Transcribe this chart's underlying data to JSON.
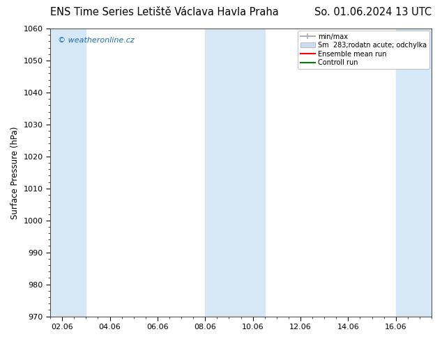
{
  "title_left": "ENS Time Series Letiště Václava Havla Praha",
  "title_right": "So. 01.06.2024 13 UTC",
  "ylabel": "Surface Pressure (hPa)",
  "ylim": [
    970,
    1060
  ],
  "yticks": [
    970,
    980,
    990,
    1000,
    1010,
    1020,
    1030,
    1040,
    1050,
    1060
  ],
  "xlim_start": -0.5,
  "xlim_end": 15.5,
  "xtick_labels": [
    "02.06",
    "04.06",
    "06.06",
    "08.06",
    "10.06",
    "12.06",
    "14.06",
    "16.06"
  ],
  "xtick_positions": [
    0,
    2,
    4,
    6,
    8,
    10,
    12,
    14
  ],
  "shaded_bands": [
    {
      "x_start": -0.5,
      "x_end": 1.0
    },
    {
      "x_start": 6.0,
      "x_end": 8.5
    },
    {
      "x_start": 14.0,
      "x_end": 15.5
    }
  ],
  "band_color": "#d6e8f5",
  "watermark_text": "© weatheronline.cz",
  "watermark_color": "#1a6abf",
  "legend_items": [
    {
      "label": "min/max",
      "color": "#b0b0b0",
      "lw": 1.5
    },
    {
      "label": "Sm  283;rodatn acute; odchylka",
      "color": "#ccdded",
      "lw": 6
    },
    {
      "label": "Ensemble mean run",
      "color": "#ff0000",
      "lw": 1.5
    },
    {
      "label": "Controll run",
      "color": "#008000",
      "lw": 1.5
    }
  ],
  "bg_color": "#ffffff",
  "axes_bg": "#ffffff",
  "title_fontsize": 10.5,
  "tick_fontsize": 8,
  "ylabel_fontsize": 8.5,
  "legend_fontsize": 7
}
